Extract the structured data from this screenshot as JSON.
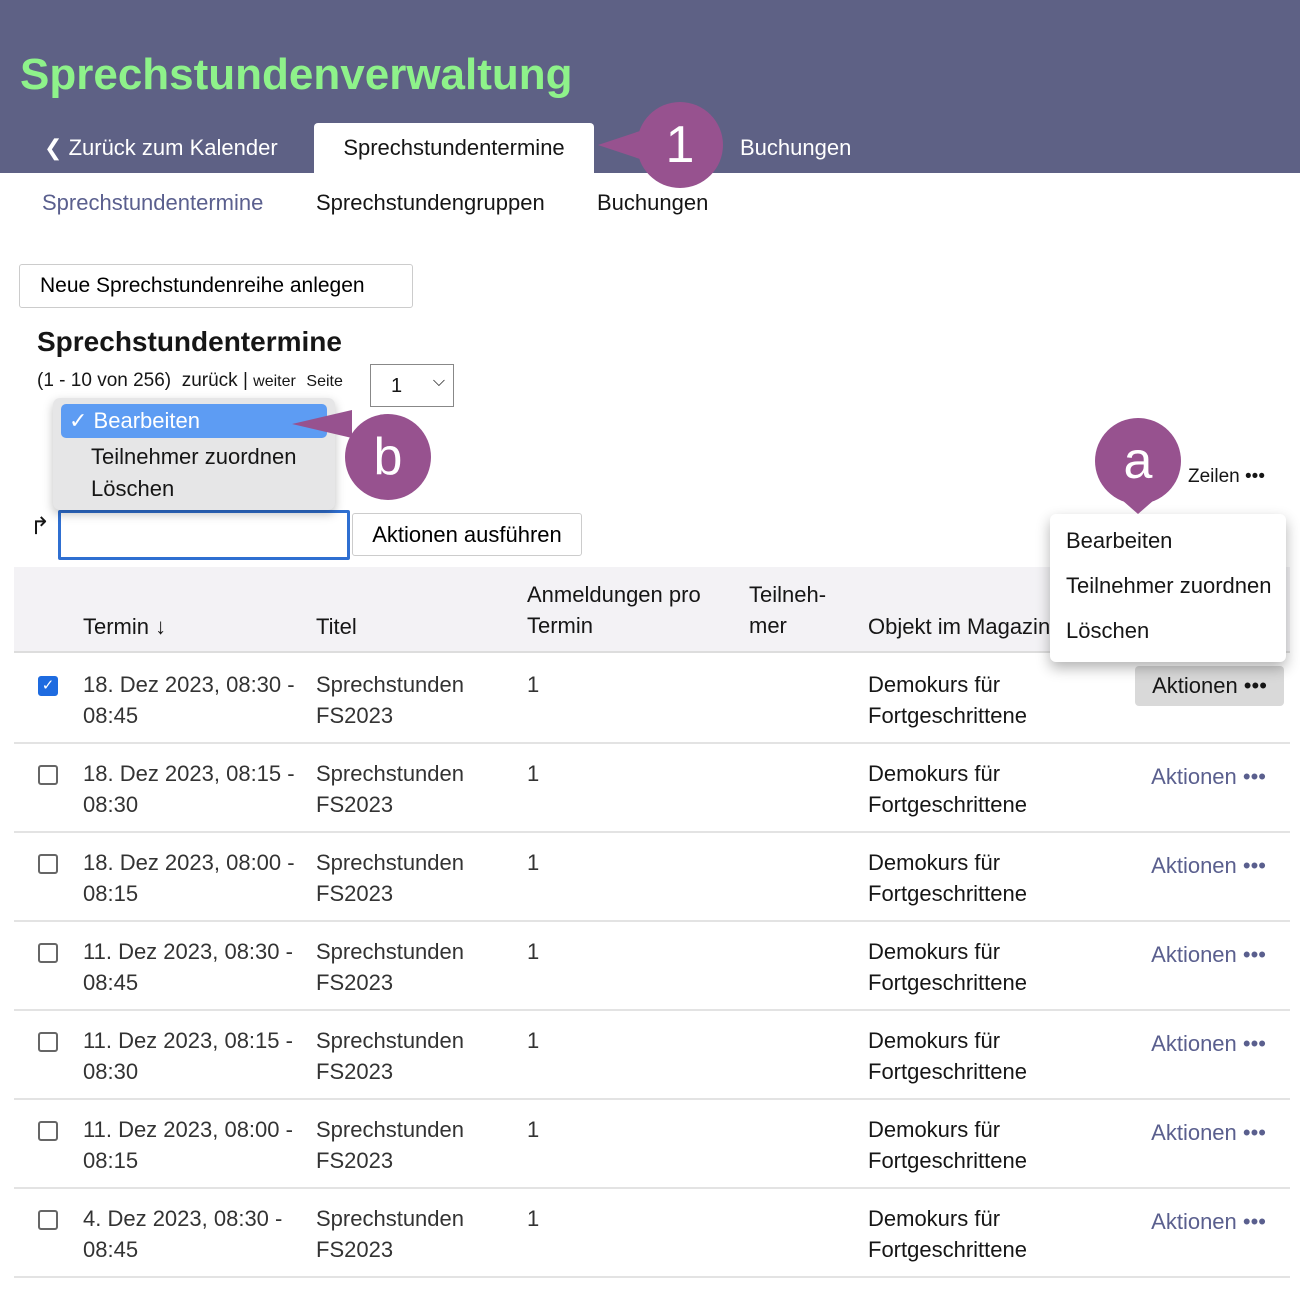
{
  "header": {
    "title": "Sprechstundenverwaltung",
    "back_label": "Zurück zum Kalender",
    "active_tab": "Sprechstundentermine",
    "other_tab": "Buchungen"
  },
  "subnav": [
    "Sprechstundentermine",
    "Sprechstundengruppen",
    "Buchungen"
  ],
  "new_button": "Neue Sprechstundenreihe anlegen",
  "list": {
    "title": "Sprechstundentermine",
    "range": "(1 - 10 von 256)",
    "prev": "zurück",
    "sep": "|",
    "next": "weiter",
    "page_label": "Seite",
    "page_value": "1",
    "rows_label": "Zeilen •••"
  },
  "bulk": {
    "options": [
      "Bearbeiten",
      "Teilnehmer zuordnen",
      "Löschen"
    ],
    "selected": "✓ Bearbeiten",
    "execute": "Aktionen ausführen"
  },
  "columns": [
    "Termin ↓",
    "Titel",
    "Anmeldungen pro Termin",
    "Teilneh-mer",
    "Objekt im Magazin"
  ],
  "rows": [
    {
      "checked": true,
      "date": "18. Dez 2023, 08:30 - 08:45",
      "title": "Sprechstunden FS2023",
      "reg": "1",
      "obj": "Demokurs für Fortgeschrittene",
      "action": "Aktionen •••"
    },
    {
      "checked": false,
      "date": "18. Dez 2023, 08:15 - 08:30",
      "title": "Sprechstunden FS2023",
      "reg": "1",
      "obj": "Demokurs für Fortgeschrittene",
      "action": "Aktionen •••"
    },
    {
      "checked": false,
      "date": "18. Dez 2023, 08:00 - 08:15",
      "title": "Sprechstunden FS2023",
      "reg": "1",
      "obj": "Demokurs für Fortgeschrittene",
      "action": "Aktionen •••"
    },
    {
      "checked": false,
      "date": "11. Dez 2023, 08:30 - 08:45",
      "title": "Sprechstunden FS2023",
      "reg": "1",
      "obj": "Demokurs für Fortgeschrittene",
      "action": "Aktionen •••"
    },
    {
      "checked": false,
      "date": "11. Dez 2023, 08:15 - 08:30",
      "title": "Sprechstunden FS2023",
      "reg": "1",
      "obj": "Demokurs für Fortgeschrittene",
      "action": "Aktionen •••"
    },
    {
      "checked": false,
      "date": "11. Dez 2023, 08:00 - 08:15",
      "title": "Sprechstunden FS2023",
      "reg": "1",
      "obj": "Demokurs für Fortgeschrittene",
      "action": "Aktionen •••"
    },
    {
      "checked": false,
      "date": "4. Dez 2023, 08:30 - 08:45",
      "title": "Sprechstunden FS2023",
      "reg": "1",
      "obj": "Demokurs für Fortgeschrittene",
      "action": "Aktionen •••"
    }
  ],
  "row_menu": {
    "button": "Aktionen •••",
    "items": [
      "Bearbeiten",
      "Teilnehmer zuordnen",
      "Löschen"
    ]
  },
  "markers": {
    "one": "1",
    "a": "a",
    "b": "b"
  },
  "colors": {
    "header": "#5e6185",
    "title": "#8ef28a",
    "marker": "#97528f",
    "link": "#5a5f8e",
    "selection": "#5d9cf3"
  }
}
